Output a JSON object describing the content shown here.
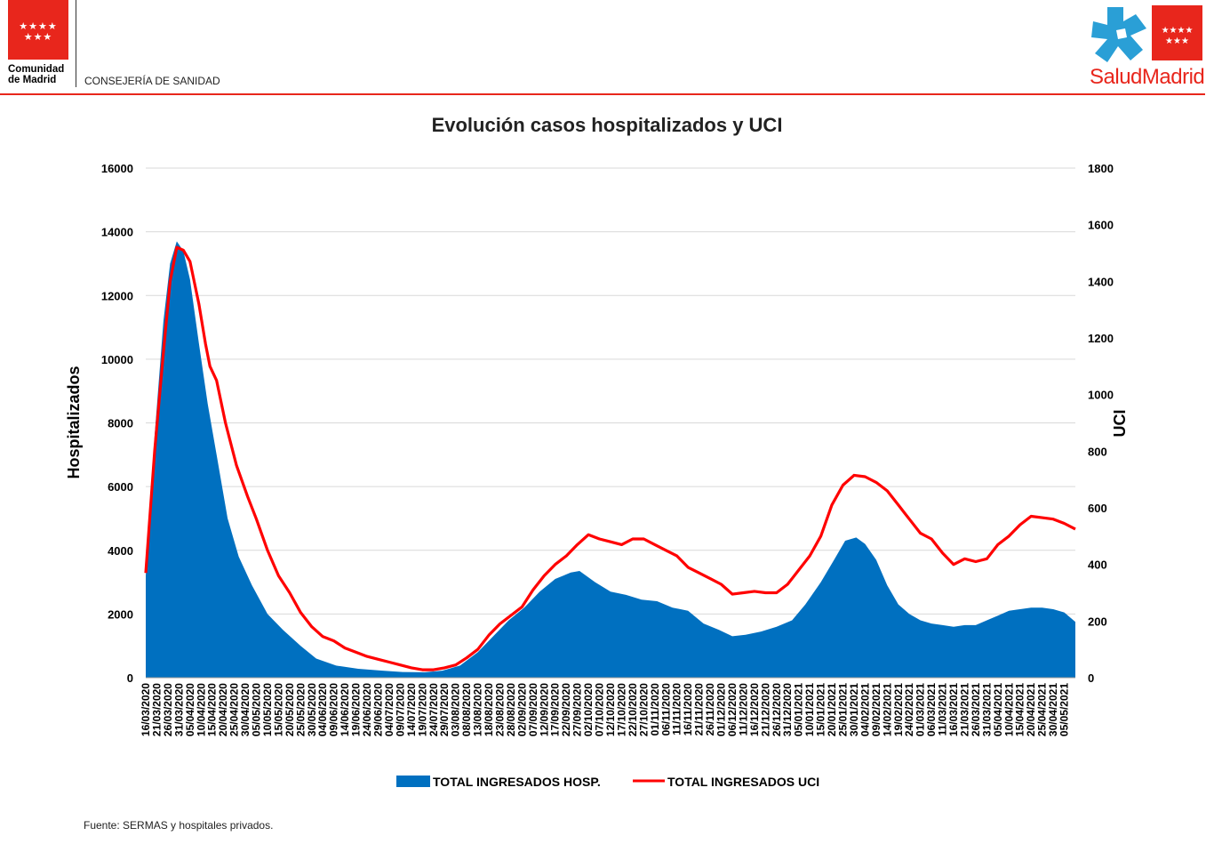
{
  "header": {
    "org_line1": "Comunidad",
    "org_line2": "de Madrid",
    "department": "CONSEJERÍA DE SANIDAD",
    "brand": "SaludMadrid",
    "brand_color": "#e8261c",
    "cross_color": "#2a9fd6"
  },
  "footer": {
    "source": "Fuente: SERMAS y hospitales privados."
  },
  "chart_data": {
    "type": "area",
    "title": "Evolución casos hospitalizados y UCI",
    "ylabel": "Hospitalizados",
    "y2label": "UCI",
    "ylim": [
      0,
      16000
    ],
    "y2lim": [
      0,
      1800
    ],
    "yticks": [
      "0",
      "2000",
      "4000",
      "6000",
      "8000",
      "10000",
      "12000",
      "14000",
      "16000"
    ],
    "y2ticks": [
      "0",
      "200",
      "400",
      "600",
      "800",
      "1000",
      "1200",
      "1400",
      "1600",
      "1800"
    ],
    "grid": true,
    "legend_position": "bottom",
    "x_start": "2020-03-16",
    "x_end": "2021-05-10",
    "xticks": [
      "16/03/2020",
      "21/03/2020",
      "26/03/2020",
      "31/03/2020",
      "05/04/2020",
      "10/04/2020",
      "15/04/2020",
      "20/04/2020",
      "25/04/2020",
      "30/04/2020",
      "05/05/2020",
      "10/05/2020",
      "15/05/2020",
      "20/05/2020",
      "25/05/2020",
      "30/05/2020",
      "04/06/2020",
      "09/06/2020",
      "14/06/2020",
      "19/06/2020",
      "24/06/2020",
      "29/06/2020",
      "04/07/2020",
      "09/07/2020",
      "14/07/2020",
      "19/07/2020",
      "24/07/2020",
      "29/07/2020",
      "03/08/2020",
      "08/08/2020",
      "13/08/2020",
      "18/08/2020",
      "23/08/2020",
      "28/08/2020",
      "02/09/2020",
      "07/09/2020",
      "12/09/2020",
      "17/09/2020",
      "22/09/2020",
      "27/09/2020",
      "02/10/2020",
      "07/10/2020",
      "12/10/2020",
      "17/10/2020",
      "22/10/2020",
      "27/10/2020",
      "01/11/2020",
      "06/11/2020",
      "11/11/2020",
      "16/11/2020",
      "21/11/2020",
      "26/11/2020",
      "01/12/2020",
      "06/12/2020",
      "11/12/2020",
      "16/12/2020",
      "21/12/2020",
      "26/12/2020",
      "31/12/2020",
      "05/01/2021",
      "10/01/2021",
      "15/01/2021",
      "20/01/2021",
      "25/01/2021",
      "30/01/2021",
      "04/02/2021",
      "09/02/2021",
      "14/02/2021",
      "19/02/2021",
      "24/02/2021",
      "01/03/2021",
      "06/03/2021",
      "11/03/2021",
      "16/03/2021",
      "21/03/2021",
      "26/03/2021",
      "31/03/2021",
      "05/04/2021",
      "10/04/2021",
      "15/04/2021",
      "20/04/2021",
      "25/04/2021",
      "30/04/2021",
      "05/05/2021"
    ],
    "series": [
      {
        "name": "TOTAL INGRESADOS HOSP.",
        "type": "area",
        "axis": "left",
        "color": "#0070c0",
        "points": [
          [
            "2020-03-16",
            3200
          ],
          [
            "2020-03-20",
            7600
          ],
          [
            "2020-03-24",
            11200
          ],
          [
            "2020-03-27",
            13000
          ],
          [
            "2020-03-30",
            13700
          ],
          [
            "2020-04-02",
            13400
          ],
          [
            "2020-04-05",
            12500
          ],
          [
            "2020-04-09",
            10500
          ],
          [
            "2020-04-13",
            8600
          ],
          [
            "2020-04-17",
            7000
          ],
          [
            "2020-04-22",
            5000
          ],
          [
            "2020-04-27",
            3800
          ],
          [
            "2020-05-03",
            2900
          ],
          [
            "2020-05-10",
            2000
          ],
          [
            "2020-05-17",
            1500
          ],
          [
            "2020-05-25",
            1000
          ],
          [
            "2020-06-01",
            600
          ],
          [
            "2020-06-10",
            380
          ],
          [
            "2020-06-20",
            280
          ],
          [
            "2020-07-01",
            220
          ],
          [
            "2020-07-10",
            180
          ],
          [
            "2020-07-20",
            170
          ],
          [
            "2020-07-28",
            220
          ],
          [
            "2020-08-05",
            380
          ],
          [
            "2020-08-13",
            800
          ],
          [
            "2020-08-20",
            1300
          ],
          [
            "2020-08-27",
            1800
          ],
          [
            "2020-09-03",
            2200
          ],
          [
            "2020-09-10",
            2700
          ],
          [
            "2020-09-17",
            3100
          ],
          [
            "2020-09-24",
            3300
          ],
          [
            "2020-09-28",
            3350
          ],
          [
            "2020-10-05",
            3000
          ],
          [
            "2020-10-12",
            2700
          ],
          [
            "2020-10-19",
            2600
          ],
          [
            "2020-10-26",
            2450
          ],
          [
            "2020-11-02",
            2400
          ],
          [
            "2020-11-09",
            2200
          ],
          [
            "2020-11-16",
            2100
          ],
          [
            "2020-11-23",
            1700
          ],
          [
            "2020-11-30",
            1500
          ],
          [
            "2020-12-06",
            1300
          ],
          [
            "2020-12-12",
            1350
          ],
          [
            "2020-12-19",
            1450
          ],
          [
            "2020-12-26",
            1600
          ],
          [
            "2021-01-02",
            1800
          ],
          [
            "2021-01-08",
            2300
          ],
          [
            "2021-01-15",
            3000
          ],
          [
            "2021-01-21",
            3700
          ],
          [
            "2021-01-26",
            4300
          ],
          [
            "2021-01-31",
            4400
          ],
          [
            "2021-02-04",
            4200
          ],
          [
            "2021-02-09",
            3700
          ],
          [
            "2021-02-14",
            2900
          ],
          [
            "2021-02-19",
            2300
          ],
          [
            "2021-02-24",
            2000
          ],
          [
            "2021-03-01",
            1800
          ],
          [
            "2021-03-06",
            1700
          ],
          [
            "2021-03-11",
            1650
          ],
          [
            "2021-03-16",
            1600
          ],
          [
            "2021-03-21",
            1650
          ],
          [
            "2021-03-26",
            1650
          ],
          [
            "2021-03-31",
            1800
          ],
          [
            "2021-04-05",
            1950
          ],
          [
            "2021-04-10",
            2100
          ],
          [
            "2021-04-15",
            2150
          ],
          [
            "2021-04-20",
            2200
          ],
          [
            "2021-04-25",
            2200
          ],
          [
            "2021-04-30",
            2150
          ],
          [
            "2021-05-05",
            2050
          ],
          [
            "2021-05-10",
            1750
          ]
        ]
      },
      {
        "name": "TOTAL INGRESADOS UCI",
        "type": "line",
        "axis": "right",
        "color": "#ff0000",
        "points": [
          [
            "2020-03-16",
            370
          ],
          [
            "2020-03-20",
            800
          ],
          [
            "2020-03-24",
            1150
          ],
          [
            "2020-03-27",
            1400
          ],
          [
            "2020-03-30",
            1520
          ],
          [
            "2020-04-02",
            1510
          ],
          [
            "2020-04-05",
            1470
          ],
          [
            "2020-04-09",
            1320
          ],
          [
            "2020-04-12",
            1180
          ],
          [
            "2020-04-14",
            1100
          ],
          [
            "2020-04-17",
            1050
          ],
          [
            "2020-04-21",
            900
          ],
          [
            "2020-04-26",
            750
          ],
          [
            "2020-05-01",
            640
          ],
          [
            "2020-05-05",
            560
          ],
          [
            "2020-05-10",
            450
          ],
          [
            "2020-05-15",
            360
          ],
          [
            "2020-05-20",
            300
          ],
          [
            "2020-05-25",
            230
          ],
          [
            "2020-05-30",
            180
          ],
          [
            "2020-06-04",
            145
          ],
          [
            "2020-06-09",
            130
          ],
          [
            "2020-06-14",
            105
          ],
          [
            "2020-06-19",
            90
          ],
          [
            "2020-06-24",
            75
          ],
          [
            "2020-06-29",
            65
          ],
          [
            "2020-07-04",
            55
          ],
          [
            "2020-07-09",
            45
          ],
          [
            "2020-07-14",
            35
          ],
          [
            "2020-07-19",
            28
          ],
          [
            "2020-07-24",
            28
          ],
          [
            "2020-07-29",
            35
          ],
          [
            "2020-08-03",
            45
          ],
          [
            "2020-08-08",
            70
          ],
          [
            "2020-08-13",
            100
          ],
          [
            "2020-08-18",
            150
          ],
          [
            "2020-08-23",
            190
          ],
          [
            "2020-08-28",
            220
          ],
          [
            "2020-09-02",
            250
          ],
          [
            "2020-09-07",
            310
          ],
          [
            "2020-09-12",
            360
          ],
          [
            "2020-09-17",
            400
          ],
          [
            "2020-09-22",
            430
          ],
          [
            "2020-09-27",
            470
          ],
          [
            "2020-10-02",
            505
          ],
          [
            "2020-10-07",
            490
          ],
          [
            "2020-10-12",
            480
          ],
          [
            "2020-10-17",
            470
          ],
          [
            "2020-10-22",
            490
          ],
          [
            "2020-10-27",
            490
          ],
          [
            "2020-11-01",
            470
          ],
          [
            "2020-11-06",
            450
          ],
          [
            "2020-11-11",
            430
          ],
          [
            "2020-11-16",
            390
          ],
          [
            "2020-11-21",
            370
          ],
          [
            "2020-11-26",
            350
          ],
          [
            "2020-12-01",
            330
          ],
          [
            "2020-12-06",
            295
          ],
          [
            "2020-12-11",
            300
          ],
          [
            "2020-12-16",
            305
          ],
          [
            "2020-12-21",
            300
          ],
          [
            "2020-12-26",
            300
          ],
          [
            "2020-12-31",
            330
          ],
          [
            "2021-01-05",
            380
          ],
          [
            "2021-01-10",
            430
          ],
          [
            "2021-01-15",
            500
          ],
          [
            "2021-01-20",
            610
          ],
          [
            "2021-01-25",
            680
          ],
          [
            "2021-01-30",
            715
          ],
          [
            "2021-02-04",
            710
          ],
          [
            "2021-02-09",
            690
          ],
          [
            "2021-02-14",
            660
          ],
          [
            "2021-02-19",
            610
          ],
          [
            "2021-02-24",
            560
          ],
          [
            "2021-03-01",
            510
          ],
          [
            "2021-03-06",
            490
          ],
          [
            "2021-03-11",
            440
          ],
          [
            "2021-03-16",
            400
          ],
          [
            "2021-03-21",
            420
          ],
          [
            "2021-03-26",
            410
          ],
          [
            "2021-03-31",
            420
          ],
          [
            "2021-04-05",
            470
          ],
          [
            "2021-04-10",
            500
          ],
          [
            "2021-04-15",
            540
          ],
          [
            "2021-04-20",
            570
          ],
          [
            "2021-04-25",
            565
          ],
          [
            "2021-04-30",
            560
          ],
          [
            "2021-05-05",
            545
          ],
          [
            "2021-05-10",
            525
          ]
        ]
      }
    ]
  }
}
